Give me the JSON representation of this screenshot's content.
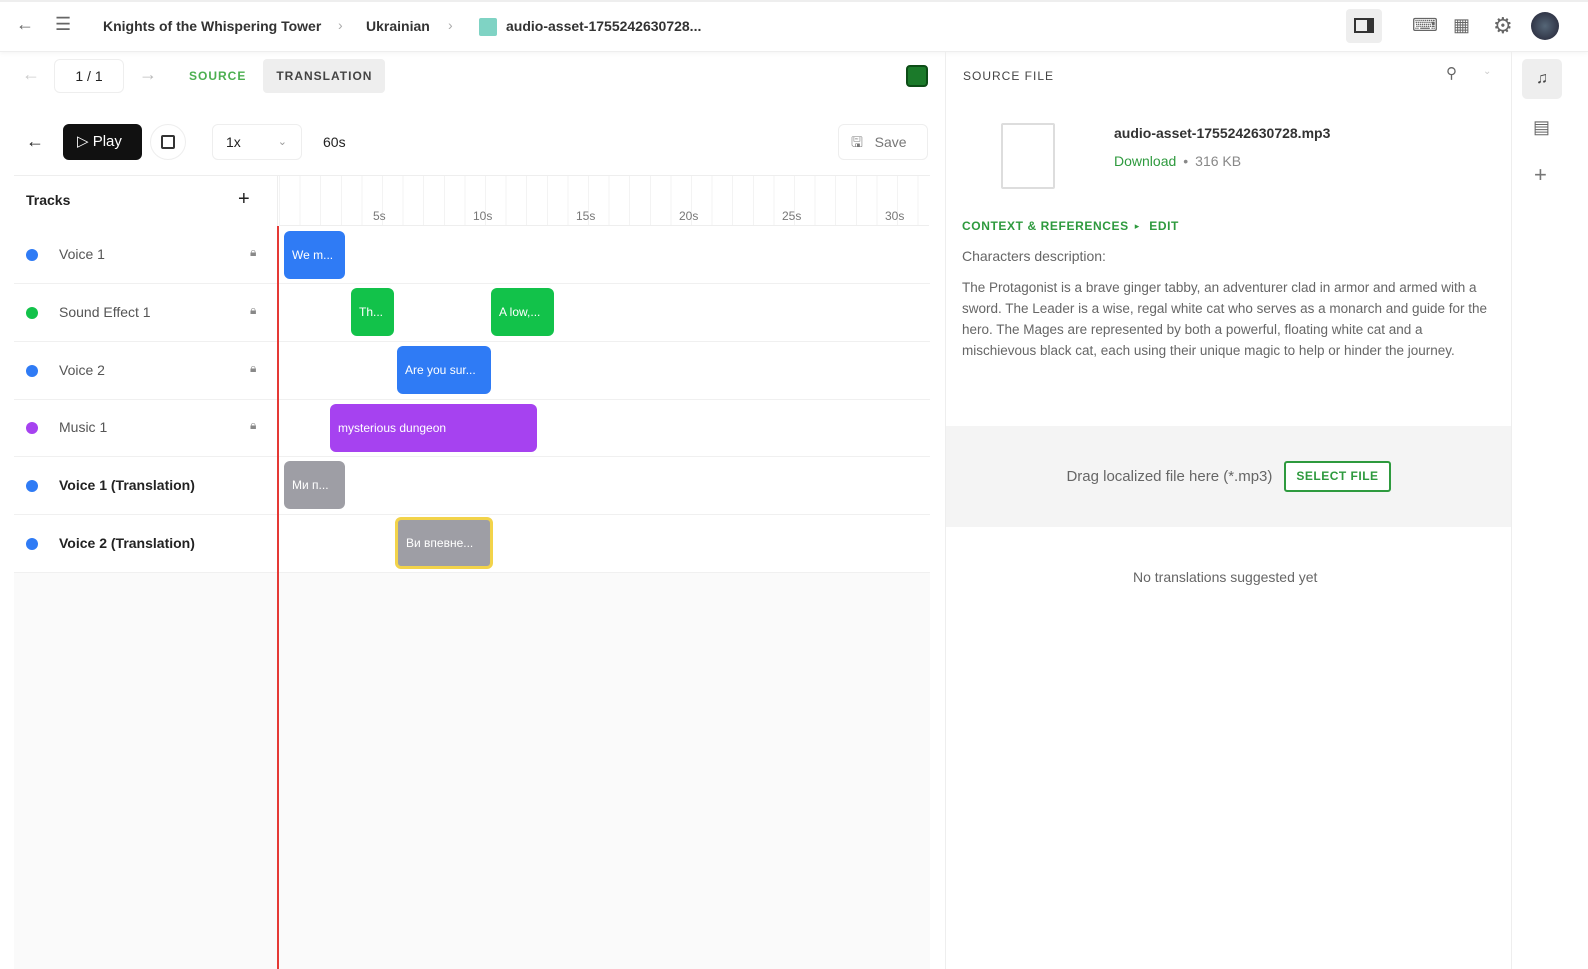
{
  "breadcrumb": {
    "project": "Knights of the Whispering Tower",
    "language": "Ukrainian",
    "file": "audio-asset-1755242630728..."
  },
  "nav": {
    "page": "1 / 1",
    "tab_source": "SOURCE",
    "tab_translation": "TRANSLATION"
  },
  "toolbar": {
    "play": "Play",
    "speed": "1x",
    "duration": "60s",
    "save": "Save"
  },
  "tracks": {
    "title": "Tracks",
    "items": [
      {
        "name": "Voice 1",
        "color": "#2f7bf5",
        "bold": false
      },
      {
        "name": "Sound Effect 1",
        "color": "#12c24a",
        "bold": false
      },
      {
        "name": "Voice 2",
        "color": "#2f7bf5",
        "bold": false
      },
      {
        "name": "Music 1",
        "color": "#a642f0",
        "bold": false
      },
      {
        "name": "Voice 1 (Translation)",
        "color": "#2f7bf5",
        "bold": true
      },
      {
        "name": "Voice 2 (Translation)",
        "color": "#2f7bf5",
        "bold": true
      }
    ]
  },
  "ruler": [
    "5s",
    "10s",
    "15s",
    "20s",
    "25s",
    "30s"
  ],
  "clips": [
    {
      "text": "We m...",
      "track": 0
    },
    {
      "text": "Th...",
      "track": 1
    },
    {
      "text": "A low,...",
      "track": 1
    },
    {
      "text": "Are you sur...",
      "track": 2
    },
    {
      "text": "mysterious dungeon",
      "track": 3
    },
    {
      "text": "Ми п...",
      "track": 4
    },
    {
      "text": "Ви впевне...",
      "track": 5,
      "selected": true
    }
  ],
  "panel": {
    "title": "SOURCE FILE",
    "filename": "audio-asset-1755242630728.mp3",
    "download": "Download",
    "size": "316 KB",
    "context_label": "CONTEXT & REFERENCES",
    "edit": "EDIT",
    "characters_label": "Characters description:",
    "description": "The Protagonist is a brave ginger tabby, an adventurer clad in armor and armed with a sword. The Leader is a wise, regal white cat who serves as a monarch and guide for the hero. The Mages are represented by both a powerful, floating white cat and a mischievous black cat, each using their unique magic to help or hinder the journey.",
    "drop_text": "Drag localized file here (*.mp3)",
    "select_file": "SELECT FILE",
    "no_translations": "No translations suggested yet"
  },
  "colors": {
    "accent": "#2e9a3e",
    "playhead": "#e53935"
  }
}
